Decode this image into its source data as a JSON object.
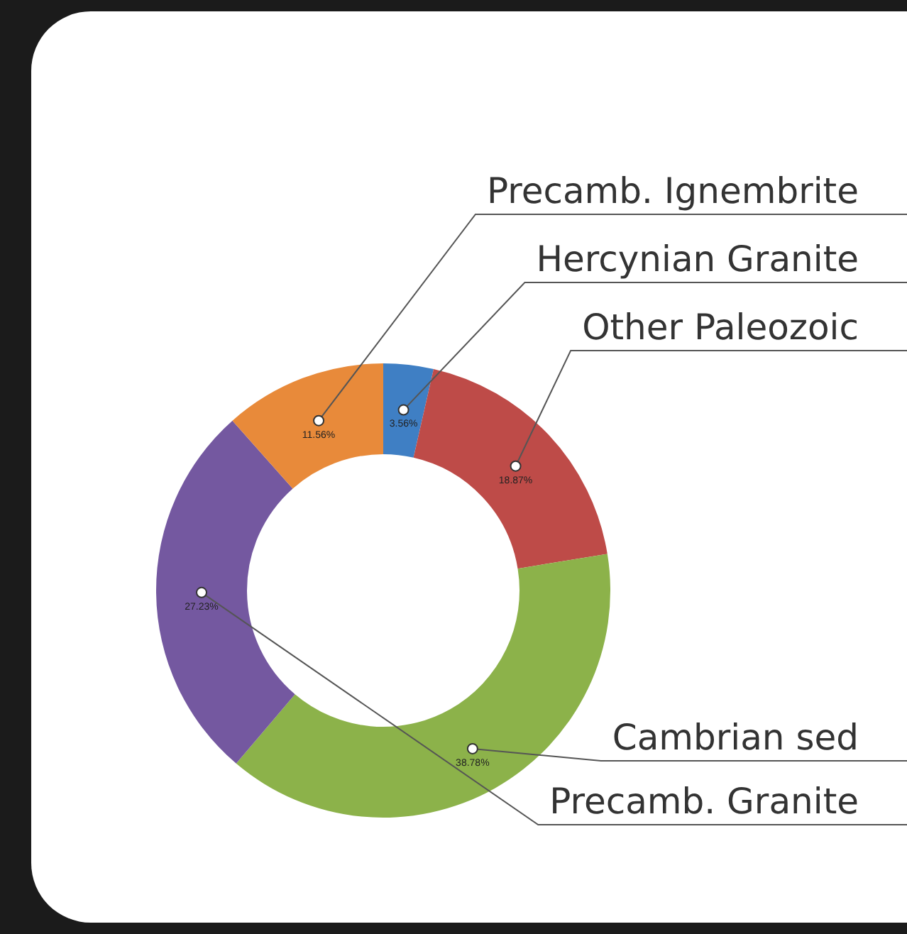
{
  "chart_data": {
    "type": "donut",
    "categories": [
      "Hercynian Granite",
      "Other Paleozoic",
      "Cambrian sed",
      "Precamb. Granite",
      "Precamb. Ignembrite"
    ],
    "values": [
      3.56,
      18.87,
      38.78,
      27.23,
      11.56
    ],
    "value_labels": [
      "3.56%",
      "18.87%",
      "38.78%",
      "27.23%",
      "11.56%"
    ],
    "colors": [
      "#3f7fc4",
      "#be4b48",
      "#8cb24a",
      "#7458a0",
      "#e88a3a"
    ],
    "legend": false
  }
}
